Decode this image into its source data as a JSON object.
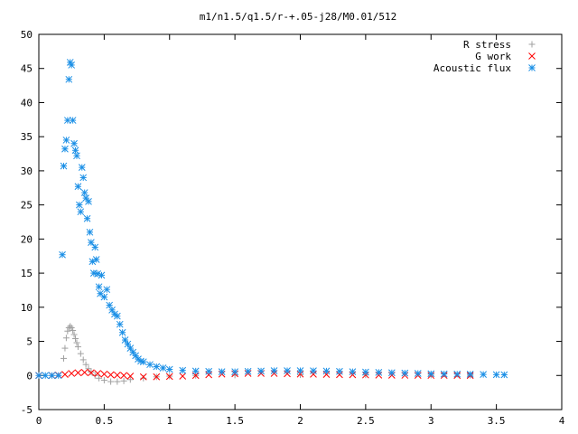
{
  "chart_data": {
    "type": "scatter",
    "title": "m1/n1.5/q1.5/r-+.05-j28/M0.01/512",
    "xlabel": "",
    "ylabel": "",
    "xlim": [
      0,
      4
    ],
    "ylim": [
      -5,
      50
    ],
    "x_ticks": [
      "0",
      "0.5",
      "1",
      "1.5",
      "2",
      "2.5",
      "3",
      "3.5",
      "4"
    ],
    "y_ticks": [
      "-5",
      "0",
      "5",
      "10",
      "15",
      "20",
      "25",
      "30",
      "35",
      "40",
      "45",
      "50"
    ],
    "grid": false,
    "legend_position": "top-right",
    "series": [
      {
        "name": "R stress",
        "marker": "plus",
        "color": "#a0a0a0",
        "x": [
          0.19,
          0.2,
          0.21,
          0.22,
          0.23,
          0.24,
          0.25,
          0.26,
          0.27,
          0.28,
          0.29,
          0.3,
          0.32,
          0.34,
          0.36,
          0.38,
          0.4,
          0.43,
          0.46,
          0.5,
          0.55,
          0.6,
          0.65,
          0.7,
          0.8,
          0.9,
          1.0,
          1.2,
          1.5,
          2.0,
          2.5,
          3.0,
          3.3
        ],
        "y": [
          2.5,
          4.0,
          5.5,
          6.5,
          7.0,
          7.2,
          7.0,
          6.6,
          6.0,
          5.4,
          4.8,
          4.2,
          3.2,
          2.3,
          1.6,
          1.0,
          0.5,
          0.0,
          -0.4,
          -0.7,
          -0.9,
          -0.9,
          -0.8,
          -0.6,
          -0.4,
          -0.2,
          -0.1,
          0.0,
          0.05,
          0.1,
          0.08,
          0.05,
          0.02
        ]
      },
      {
        "name": "G work",
        "marker": "cross",
        "color": "#ff0000",
        "x": [
          0.0,
          0.1,
          0.15,
          0.2,
          0.25,
          0.3,
          0.35,
          0.4,
          0.45,
          0.5,
          0.55,
          0.6,
          0.65,
          0.7,
          0.8,
          0.9,
          1.0,
          1.1,
          1.2,
          1.3,
          1.4,
          1.5,
          1.6,
          1.7,
          1.8,
          1.9,
          2.0,
          2.1,
          2.2,
          2.3,
          2.4,
          2.5,
          2.6,
          2.7,
          2.8,
          2.9,
          3.0,
          3.1,
          3.2,
          3.3
        ],
        "y": [
          0.0,
          0.0,
          0.05,
          0.15,
          0.3,
          0.4,
          0.45,
          0.4,
          0.3,
          0.2,
          0.1,
          0.05,
          0.0,
          -0.1,
          -0.2,
          -0.2,
          -0.15,
          -0.1,
          0.0,
          0.1,
          0.2,
          0.25,
          0.3,
          0.3,
          0.3,
          0.25,
          0.2,
          0.18,
          0.15,
          0.12,
          0.1,
          0.08,
          0.05,
          0.04,
          0.03,
          0.02,
          0.01,
          0.01,
          0.0,
          0.0
        ]
      },
      {
        "name": "Acoustic flux",
        "marker": "star",
        "color": "#1a8fe6",
        "x": [
          0.0,
          0.05,
          0.1,
          0.15,
          0.18,
          0.19,
          0.2,
          0.21,
          0.22,
          0.23,
          0.24,
          0.25,
          0.26,
          0.27,
          0.28,
          0.29,
          0.3,
          0.31,
          0.32,
          0.33,
          0.34,
          0.35,
          0.36,
          0.37,
          0.38,
          0.39,
          0.4,
          0.41,
          0.42,
          0.43,
          0.44,
          0.45,
          0.46,
          0.47,
          0.48,
          0.5,
          0.52,
          0.54,
          0.56,
          0.58,
          0.6,
          0.62,
          0.64,
          0.66,
          0.68,
          0.7,
          0.72,
          0.74,
          0.76,
          0.78,
          0.8,
          0.85,
          0.9,
          0.95,
          1.0,
          1.1,
          1.2,
          1.3,
          1.4,
          1.5,
          1.6,
          1.7,
          1.8,
          1.9,
          2.0,
          2.1,
          2.2,
          2.3,
          2.4,
          2.5,
          2.6,
          2.7,
          2.8,
          2.9,
          3.0,
          3.1,
          3.2,
          3.3,
          3.4,
          3.5,
          3.56
        ],
        "y": [
          0.0,
          0.0,
          0.0,
          0.0,
          17.7,
          30.7,
          33.2,
          34.5,
          37.4,
          43.4,
          45.9,
          45.5,
          37.4,
          34.0,
          33.0,
          32.2,
          27.7,
          25.0,
          24.0,
          30.5,
          29.0,
          26.8,
          26.0,
          23.0,
          25.5,
          21.0,
          19.5,
          16.7,
          15.0,
          18.8,
          17.0,
          14.9,
          13.0,
          12.0,
          14.7,
          11.5,
          12.6,
          10.3,
          9.6,
          9.0,
          8.7,
          7.5,
          6.3,
          5.2,
          4.6,
          4.0,
          3.4,
          2.9,
          2.4,
          2.1,
          2.0,
          1.6,
          1.3,
          1.1,
          0.9,
          0.75,
          0.65,
          0.6,
          0.55,
          0.55,
          0.6,
          0.65,
          0.7,
          0.7,
          0.7,
          0.68,
          0.65,
          0.6,
          0.55,
          0.5,
          0.45,
          0.4,
          0.35,
          0.3,
          0.25,
          0.22,
          0.2,
          0.18,
          0.15,
          0.12,
          0.1
        ]
      }
    ]
  }
}
